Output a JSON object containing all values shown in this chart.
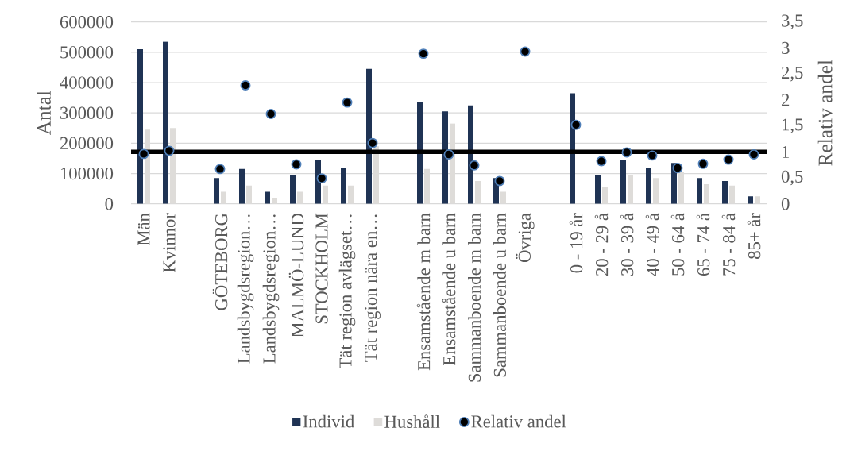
{
  "chart_data": {
    "type": "bar",
    "categories": [
      "Män",
      "Kvinnor",
      null,
      "GÖTEBORG",
      "Landsbygdsregion…",
      "Landsbygdsregion…",
      "MALMÖ-LUND",
      "STOCKHOLM",
      "Tät region avlägset…",
      "Tät region nära en…",
      null,
      "Ensamstående m barn",
      "Ensamstående u barn",
      "Sammanboende m barn",
      "Sammanboende u barn",
      "Övriga",
      null,
      "0 - 19 år",
      "20 - 29 å",
      "30 - 39 å",
      "40 - 49 å",
      "50 - 64 å",
      "65 - 74 å",
      "75 - 84 å",
      "85+ år"
    ],
    "series": [
      {
        "name": "Individ",
        "color": "#1f3354",
        "values": [
          510000,
          535000,
          null,
          85000,
          115000,
          40000,
          95000,
          145000,
          120000,
          445000,
          null,
          335000,
          305000,
          325000,
          85000,
          null,
          null,
          365000,
          95000,
          145000,
          120000,
          135000,
          85000,
          75000,
          25000
        ]
      },
      {
        "name": "Hushåll",
        "color": "#dedcd9",
        "values": [
          245000,
          250000,
          null,
          40000,
          60000,
          20000,
          40000,
          60000,
          60000,
          190000,
          null,
          115000,
          265000,
          75000,
          40000,
          null,
          null,
          null,
          55000,
          95000,
          85000,
          105000,
          65000,
          60000,
          25000
        ]
      },
      {
        "name": "Relativ andel",
        "type": "scatter",
        "axis": "y2",
        "marker": "circle",
        "color": "#000000",
        "values": [
          0.96,
          1.02,
          null,
          0.67,
          2.28,
          1.73,
          0.76,
          0.49,
          1.95,
          1.17,
          null,
          2.89,
          0.95,
          0.74,
          0.44,
          2.93,
          null,
          1.52,
          0.82,
          0.99,
          0.93,
          0.69,
          0.77,
          0.85,
          0.95
        ]
      }
    ],
    "ylabel": "Antal",
    "y2label": "Relativ andel",
    "ylim": [
      0,
      600000
    ],
    "yticks": [
      0,
      100000,
      200000,
      300000,
      400000,
      500000,
      600000
    ],
    "y2lim": [
      0,
      3.5
    ],
    "y2ticks": [
      0,
      {
        "value": 0.5,
        "label": "0,5"
      },
      1,
      {
        "value": 1.5,
        "label": "1,5"
      },
      2,
      {
        "value": 2.5,
        "label": "2,5"
      },
      3,
      {
        "value": 3.5,
        "label": "3,5"
      }
    ],
    "ref_lines": [
      {
        "axis": "y2",
        "value": 1,
        "color": "#000000"
      }
    ],
    "grid": "y",
    "legend": "bottom"
  }
}
